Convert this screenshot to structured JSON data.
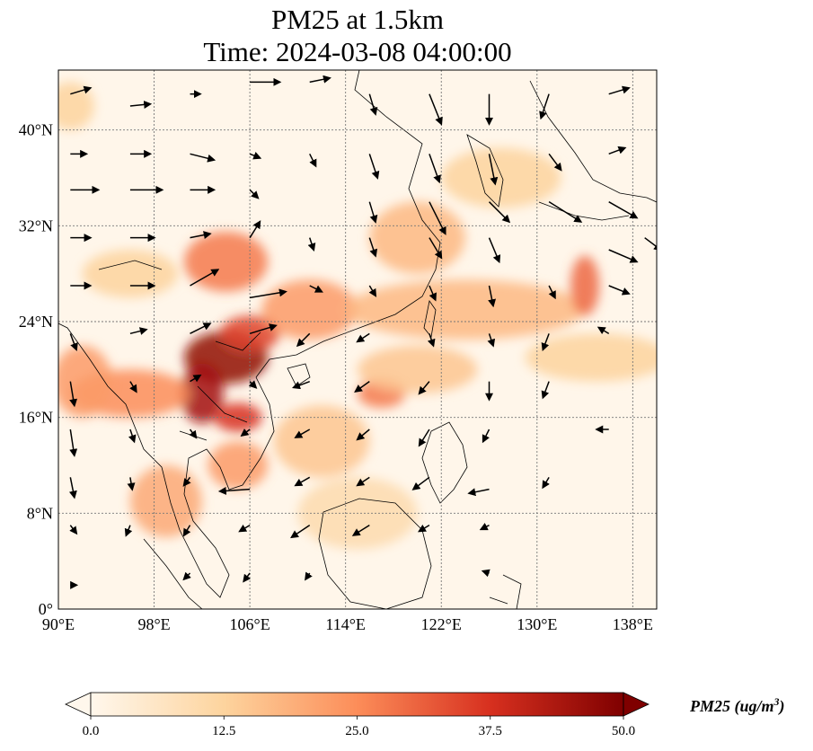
{
  "title": {
    "line1": "PM25 at 1.5km",
    "line2": "Time: 2024-03-08 04:00:00"
  },
  "map": {
    "lon_range": [
      90,
      140
    ],
    "lat_range": [
      0,
      45
    ],
    "lon_ticks": [
      {
        "value": 90,
        "label": "90°E"
      },
      {
        "value": 98,
        "label": "98°E"
      },
      {
        "value": 106,
        "label": "106°E"
      },
      {
        "value": 114,
        "label": "114°E"
      },
      {
        "value": 122,
        "label": "122°E"
      },
      {
        "value": 130,
        "label": "130°E"
      },
      {
        "value": 138,
        "label": "138°E"
      }
    ],
    "lat_ticks": [
      {
        "value": 0,
        "label": "0°"
      },
      {
        "value": 8,
        "label": "8°N"
      },
      {
        "value": 16,
        "label": "16°N"
      },
      {
        "value": 24,
        "label": "24°N"
      },
      {
        "value": 32,
        "label": "32°N"
      },
      {
        "value": 40,
        "label": "40°N"
      }
    ],
    "gridlines": true,
    "colormap": "OrRd",
    "colors": {
      "low": "#fff7ec",
      "mid": "#fdd49e",
      "high": "#ef6548",
      "max": "#7f0000"
    }
  },
  "colorbar": {
    "min": 0.0,
    "max": 50.0,
    "ticks": [
      "0.0",
      "12.5",
      "25.0",
      "37.5",
      "50.0"
    ],
    "label_main": "PM25 (ug/m",
    "label_sup": "3",
    "label_end": ")",
    "extend": "both"
  },
  "wind_vectors": [
    {
      "lon": 91,
      "lat": 43,
      "u": 1,
      "v": 0.3
    },
    {
      "lon": 96,
      "lat": 42,
      "u": 1,
      "v": 0.1
    },
    {
      "lon": 101,
      "lat": 43,
      "u": 0.5,
      "v": 0
    },
    {
      "lon": 106,
      "lat": 44,
      "u": 1.5,
      "v": 0
    },
    {
      "lon": 111,
      "lat": 44,
      "u": 1,
      "v": 0.2
    },
    {
      "lon": 116,
      "lat": 43,
      "u": 0.3,
      "v": -1
    },
    {
      "lon": 121,
      "lat": 43,
      "u": 0.6,
      "v": -1.5
    },
    {
      "lon": 126,
      "lat": 43,
      "u": 0,
      "v": -1.5
    },
    {
      "lon": 131,
      "lat": 43,
      "u": -0.4,
      "v": -1.2
    },
    {
      "lon": 136,
      "lat": 43,
      "u": 1,
      "v": 0.3
    },
    {
      "lon": 91,
      "lat": 38,
      "u": 0.8,
      "v": 0
    },
    {
      "lon": 96,
      "lat": 38,
      "u": 1,
      "v": 0
    },
    {
      "lon": 101,
      "lat": 38,
      "u": 1.2,
      "v": -0.3
    },
    {
      "lon": 106,
      "lat": 38,
      "u": 0.5,
      "v": -0.2
    },
    {
      "lon": 111,
      "lat": 38,
      "u": 0.3,
      "v": -0.6
    },
    {
      "lon": 116,
      "lat": 38,
      "u": 0.4,
      "v": -1.2
    },
    {
      "lon": 121,
      "lat": 38,
      "u": 0.5,
      "v": -1.4
    },
    {
      "lon": 126,
      "lat": 38,
      "u": 0.3,
      "v": -1.5
    },
    {
      "lon": 131,
      "lat": 38,
      "u": 0.6,
      "v": -0.8
    },
    {
      "lon": 136,
      "lat": 38,
      "u": 0.8,
      "v": 0.3
    },
    {
      "lon": 91,
      "lat": 35,
      "u": 1.4,
      "v": 0
    },
    {
      "lon": 96,
      "lat": 35,
      "u": 1.6,
      "v": 0
    },
    {
      "lon": 101,
      "lat": 35,
      "u": 1.2,
      "v": 0
    },
    {
      "lon": 106,
      "lat": 35,
      "u": 0.4,
      "v": -0.4
    },
    {
      "lon": 116,
      "lat": 34,
      "u": 0.3,
      "v": -1
    },
    {
      "lon": 121,
      "lat": 34,
      "u": 0.8,
      "v": -1.6
    },
    {
      "lon": 126,
      "lat": 34,
      "u": 1,
      "v": -1
    },
    {
      "lon": 131,
      "lat": 34,
      "u": 1.6,
      "v": -1
    },
    {
      "lon": 136,
      "lat": 34,
      "u": 1.4,
      "v": -0.8
    },
    {
      "lon": 91,
      "lat": 31,
      "u": 1,
      "v": 0
    },
    {
      "lon": 96,
      "lat": 31,
      "u": 1.2,
      "v": 0
    },
    {
      "lon": 101,
      "lat": 31,
      "u": 1,
      "v": 0.2
    },
    {
      "lon": 106,
      "lat": 31,
      "u": 0.5,
      "v": 0.8
    },
    {
      "lon": 111,
      "lat": 31,
      "u": 0.2,
      "v": -0.6
    },
    {
      "lon": 116,
      "lat": 31,
      "u": 0.3,
      "v": -0.9
    },
    {
      "lon": 121,
      "lat": 31,
      "u": 0.6,
      "v": -1
    },
    {
      "lon": 126,
      "lat": 31,
      "u": 0.5,
      "v": -1.2
    },
    {
      "lon": 136,
      "lat": 30,
      "u": 1.4,
      "v": -0.6
    },
    {
      "lon": 139,
      "lat": 31,
      "u": 0.8,
      "v": -0.6
    },
    {
      "lon": 91,
      "lat": 27,
      "u": 1,
      "v": 0
    },
    {
      "lon": 96,
      "lat": 27,
      "u": 1.2,
      "v": 0
    },
    {
      "lon": 101,
      "lat": 27,
      "u": 1.4,
      "v": 0.8
    },
    {
      "lon": 106,
      "lat": 26,
      "u": 1.8,
      "v": 0.3
    },
    {
      "lon": 111,
      "lat": 27,
      "u": 0.6,
      "v": -0.3
    },
    {
      "lon": 116,
      "lat": 27,
      "u": 0.3,
      "v": -0.5
    },
    {
      "lon": 121,
      "lat": 27,
      "u": 0.3,
      "v": -0.7
    },
    {
      "lon": 126,
      "lat": 27,
      "u": 0.2,
      "v": -1
    },
    {
      "lon": 131,
      "lat": 27,
      "u": 0.3,
      "v": -0.6
    },
    {
      "lon": 136,
      "lat": 27,
      "u": 1,
      "v": -0.4
    },
    {
      "lon": 91,
      "lat": 23,
      "u": 0.3,
      "v": -0.8
    },
    {
      "lon": 96,
      "lat": 23,
      "u": 0.8,
      "v": 0.2
    },
    {
      "lon": 101,
      "lat": 23,
      "u": 1,
      "v": 0.5
    },
    {
      "lon": 106,
      "lat": 23,
      "u": 1.3,
      "v": 0.4
    },
    {
      "lon": 111,
      "lat": 23,
      "u": -0.6,
      "v": -0.6
    },
    {
      "lon": 116,
      "lat": 23,
      "u": -0.6,
      "v": -0.4
    },
    {
      "lon": 121,
      "lat": 23,
      "u": 0.2,
      "v": -0.6
    },
    {
      "lon": 126,
      "lat": 23,
      "u": 0.2,
      "v": -0.6
    },
    {
      "lon": 131,
      "lat": 23,
      "u": -0.3,
      "v": -0.8
    },
    {
      "lon": 136,
      "lat": 23,
      "u": -0.5,
      "v": 0.3
    },
    {
      "lon": 91,
      "lat": 19,
      "u": 0.2,
      "v": -1.2
    },
    {
      "lon": 96,
      "lat": 19,
      "u": 0.3,
      "v": -0.5
    },
    {
      "lon": 101,
      "lat": 19,
      "u": 0.5,
      "v": 0.3
    },
    {
      "lon": 106,
      "lat": 19,
      "u": 0.3,
      "v": -0.3
    },
    {
      "lon": 111,
      "lat": 19,
      "u": -0.8,
      "v": -0.3
    },
    {
      "lon": 116,
      "lat": 19,
      "u": -0.7,
      "v": -0.5
    },
    {
      "lon": 121,
      "lat": 19,
      "u": -0.5,
      "v": -0.6
    },
    {
      "lon": 126,
      "lat": 19,
      "u": 0,
      "v": -0.9
    },
    {
      "lon": 131,
      "lat": 19,
      "u": -0.3,
      "v": -0.8
    },
    {
      "lon": 91,
      "lat": 15,
      "u": 0.2,
      "v": -1.3
    },
    {
      "lon": 96,
      "lat": 15,
      "u": 0.2,
      "v": -0.6
    },
    {
      "lon": 101,
      "lat": 15,
      "u": 0.3,
      "v": -0.4
    },
    {
      "lon": 106,
      "lat": 15,
      "u": -0.4,
      "v": -0.3
    },
    {
      "lon": 111,
      "lat": 15,
      "u": -0.7,
      "v": -0.4
    },
    {
      "lon": 116,
      "lat": 15,
      "u": -0.6,
      "v": -0.5
    },
    {
      "lon": 121,
      "lat": 15,
      "u": -0.5,
      "v": -0.8
    },
    {
      "lon": 126,
      "lat": 15,
      "u": -0.3,
      "v": -0.6
    },
    {
      "lon": 136,
      "lat": 15,
      "u": -0.6,
      "v": 0
    },
    {
      "lon": 91,
      "lat": 11,
      "u": 0.2,
      "v": -1
    },
    {
      "lon": 96,
      "lat": 11,
      "u": 0.1,
      "v": -0.6
    },
    {
      "lon": 101,
      "lat": 11,
      "u": -0.3,
      "v": -0.4
    },
    {
      "lon": 106,
      "lat": 10,
      "u": -1.5,
      "v": -0.1
    },
    {
      "lon": 111,
      "lat": 11,
      "u": -0.7,
      "v": -0.4
    },
    {
      "lon": 116,
      "lat": 11,
      "u": -0.6,
      "v": -0.4
    },
    {
      "lon": 121,
      "lat": 11,
      "u": -0.8,
      "v": -0.6
    },
    {
      "lon": 126,
      "lat": 10,
      "u": -1,
      "v": -0.2
    },
    {
      "lon": 131,
      "lat": 11,
      "u": -0.3,
      "v": -0.5
    },
    {
      "lon": 91,
      "lat": 7,
      "u": 0.3,
      "v": -0.4
    },
    {
      "lon": 96,
      "lat": 7,
      "u": -0.2,
      "v": -0.5
    },
    {
      "lon": 101,
      "lat": 7,
      "u": -0.3,
      "v": -0.5
    },
    {
      "lon": 106,
      "lat": 7,
      "u": -0.5,
      "v": -0.3
    },
    {
      "lon": 111,
      "lat": 7,
      "u": -0.9,
      "v": -0.6
    },
    {
      "lon": 116,
      "lat": 7,
      "u": -0.8,
      "v": -0.5
    },
    {
      "lon": 121,
      "lat": 7,
      "u": -0.5,
      "v": -0.3
    },
    {
      "lon": 126,
      "lat": 7,
      "u": -0.4,
      "v": -0.2
    },
    {
      "lon": 91,
      "lat": 2,
      "u": 0.3,
      "v": 0
    },
    {
      "lon": 101,
      "lat": 3,
      "u": -0.3,
      "v": -0.3
    },
    {
      "lon": 106,
      "lat": 3,
      "u": -0.3,
      "v": -0.4
    },
    {
      "lon": 111,
      "lat": 3,
      "u": -0.2,
      "v": -0.3
    },
    {
      "lon": 126,
      "lat": 3,
      "u": -0.3,
      "v": 0.1
    }
  ],
  "pollution_blobs": [
    {
      "lon": 104,
      "lat": 21,
      "rlon": 3.5,
      "rlat": 2.2,
      "level": 0.95
    },
    {
      "lon": 102,
      "lat": 18,
      "rlon": 1.8,
      "rlat": 2.5,
      "level": 0.9
    },
    {
      "lon": 105,
      "lat": 16,
      "rlon": 2.0,
      "rlat": 1.2,
      "level": 0.75
    },
    {
      "lon": 106,
      "lat": 23,
      "rlon": 2.5,
      "rlat": 1.5,
      "level": 0.7
    },
    {
      "lon": 104,
      "lat": 29,
      "rlon": 3.5,
      "rlat": 2.5,
      "level": 0.55
    },
    {
      "lon": 111,
      "lat": 25,
      "rlon": 4,
      "rlat": 2.5,
      "level": 0.45
    },
    {
      "lon": 117,
      "lat": 18,
      "rlon": 2,
      "rlat": 1.2,
      "level": 0.55
    },
    {
      "lon": 96,
      "lat": 18,
      "rlon": 5,
      "rlat": 2,
      "level": 0.5
    },
    {
      "lon": 92,
      "lat": 19,
      "rlon": 2.5,
      "rlat": 3,
      "level": 0.45
    },
    {
      "lon": 105,
      "lat": 12,
      "rlon": 2.5,
      "rlat": 2,
      "level": 0.45
    },
    {
      "lon": 99,
      "lat": 9,
      "rlon": 3,
      "rlat": 3,
      "level": 0.4
    },
    {
      "lon": 124,
      "lat": 25,
      "rlon": 10,
      "rlat": 2.5,
      "level": 0.35
    },
    {
      "lon": 134,
      "lat": 27,
      "rlon": 1.2,
      "rlat": 2.5,
      "level": 0.6
    },
    {
      "lon": 120,
      "lat": 31,
      "rlon": 4,
      "rlat": 3,
      "level": 0.35
    },
    {
      "lon": 120,
      "lat": 20,
      "rlon": 5,
      "rlat": 2,
      "level": 0.3
    },
    {
      "lon": 112,
      "lat": 14,
      "rlon": 4,
      "rlat": 3,
      "level": 0.3
    },
    {
      "lon": 127,
      "lat": 36,
      "rlon": 5,
      "rlat": 2.5,
      "level": 0.25
    },
    {
      "lon": 96,
      "lat": 28,
      "rlon": 4,
      "rlat": 2,
      "level": 0.25
    },
    {
      "lon": 115,
      "lat": 8,
      "rlon": 5,
      "rlat": 3,
      "level": 0.2
    },
    {
      "lon": 91,
      "lat": 42,
      "rlon": 2,
      "rlat": 2,
      "level": 0.25
    },
    {
      "lon": 135,
      "lat": 21,
      "rlon": 6,
      "rlat": 2,
      "level": 0.25
    }
  ]
}
